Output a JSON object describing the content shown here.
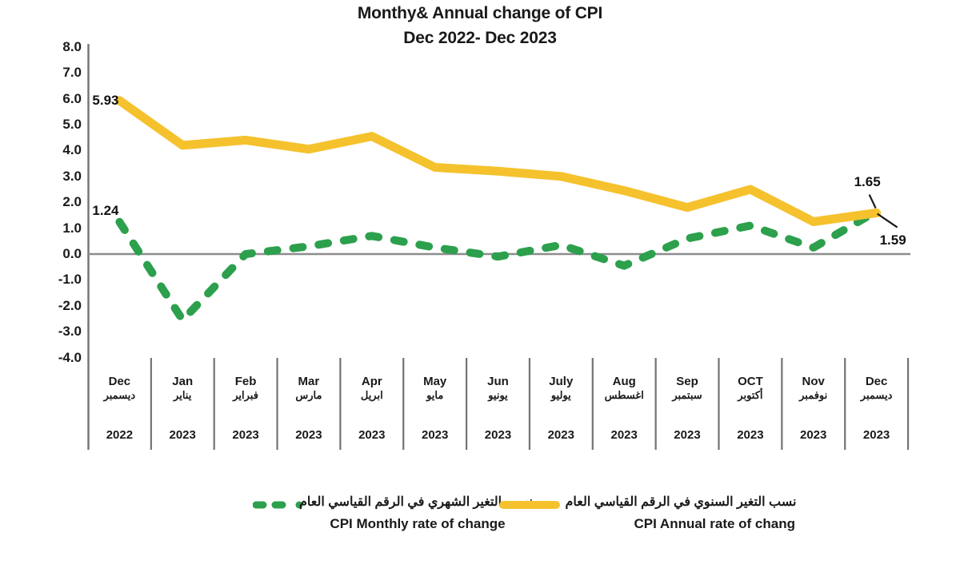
{
  "title": {
    "line1": "Monthy& Annual change of CPI",
    "line2": "Dec 2022- Dec 2023"
  },
  "chart_data": {
    "type": "line",
    "title": "Monthy& Annual change of CPI",
    "subtitle": "Dec 2022- Dec 2023",
    "ylim": [
      -4.0,
      8.0
    ],
    "y_ticks": [
      "8.0",
      "7.0",
      "6.0",
      "5.0",
      "4.0",
      "3.0",
      "2.0",
      "1.0",
      "0.0",
      "-1.0",
      "-2.0",
      "-3.0",
      "-4.0"
    ],
    "grid": "zero-line-only",
    "legend_position": "bottom",
    "categories": [
      {
        "en": "Dec",
        "ar": "ديسمبر",
        "year": "2022"
      },
      {
        "en": "Jan",
        "ar": "يناير",
        "year": "2023"
      },
      {
        "en": "Feb",
        "ar": "فبراير",
        "year": "2023"
      },
      {
        "en": "Mar",
        "ar": "مارس",
        "year": "2023"
      },
      {
        "en": "Apr",
        "ar": "ابريل",
        "year": "2023"
      },
      {
        "en": "May",
        "ar": "مايو",
        "year": "2023"
      },
      {
        "en": "Jun",
        "ar": "يونيو",
        "year": "2023"
      },
      {
        "en": "July",
        "ar": "يوليو",
        "year": "2023"
      },
      {
        "en": "Aug",
        "ar": "اغسطس",
        "year": "2023"
      },
      {
        "en": "Sep",
        "ar": "سبتمبر",
        "year": "2023"
      },
      {
        "en": "OCT",
        "ar": "أكتوبر",
        "year": "2023"
      },
      {
        "en": "Nov",
        "ar": "نوفمبر",
        "year": "2023"
      },
      {
        "en": "Dec",
        "ar": "ديسمبر",
        "year": "2023"
      }
    ],
    "series": [
      {
        "name": "CPI Annual rate of chang",
        "name_ar": "نسب التغير السنوي في الرقم القياسي العام",
        "color": "#F5C22E",
        "line_style": "solid",
        "values": [
          5.93,
          4.2,
          4.4,
          4.05,
          4.55,
          3.35,
          3.2,
          3.0,
          2.45,
          1.8,
          2.5,
          1.25,
          1.59
        ]
      },
      {
        "name": "CPI Monthly rate of change",
        "name_ar": "نسب التغير الشهري في الرقم القياسي العام",
        "color": "#2CA04C",
        "line_style": "dashed",
        "values": [
          1.24,
          -2.55,
          0.0,
          0.3,
          0.7,
          0.25,
          -0.1,
          0.35,
          -0.45,
          0.6,
          1.1,
          0.25,
          1.65
        ]
      }
    ],
    "data_labels": [
      {
        "id": "annual-first",
        "text": "5.93"
      },
      {
        "id": "monthly-first",
        "text": "1.24"
      },
      {
        "id": "monthly-last",
        "text": "1.65"
      },
      {
        "id": "annual-last",
        "text": "1.59"
      }
    ]
  },
  "legend": {
    "monthly": {
      "ar": "نسب التغير الشهري في الرقم القياسي العام",
      "en": "CPI Monthly rate of change"
    },
    "annual": {
      "ar": "نسب التغير السنوي في الرقم القياسي العام",
      "en": "CPI Annual rate of chang"
    }
  }
}
